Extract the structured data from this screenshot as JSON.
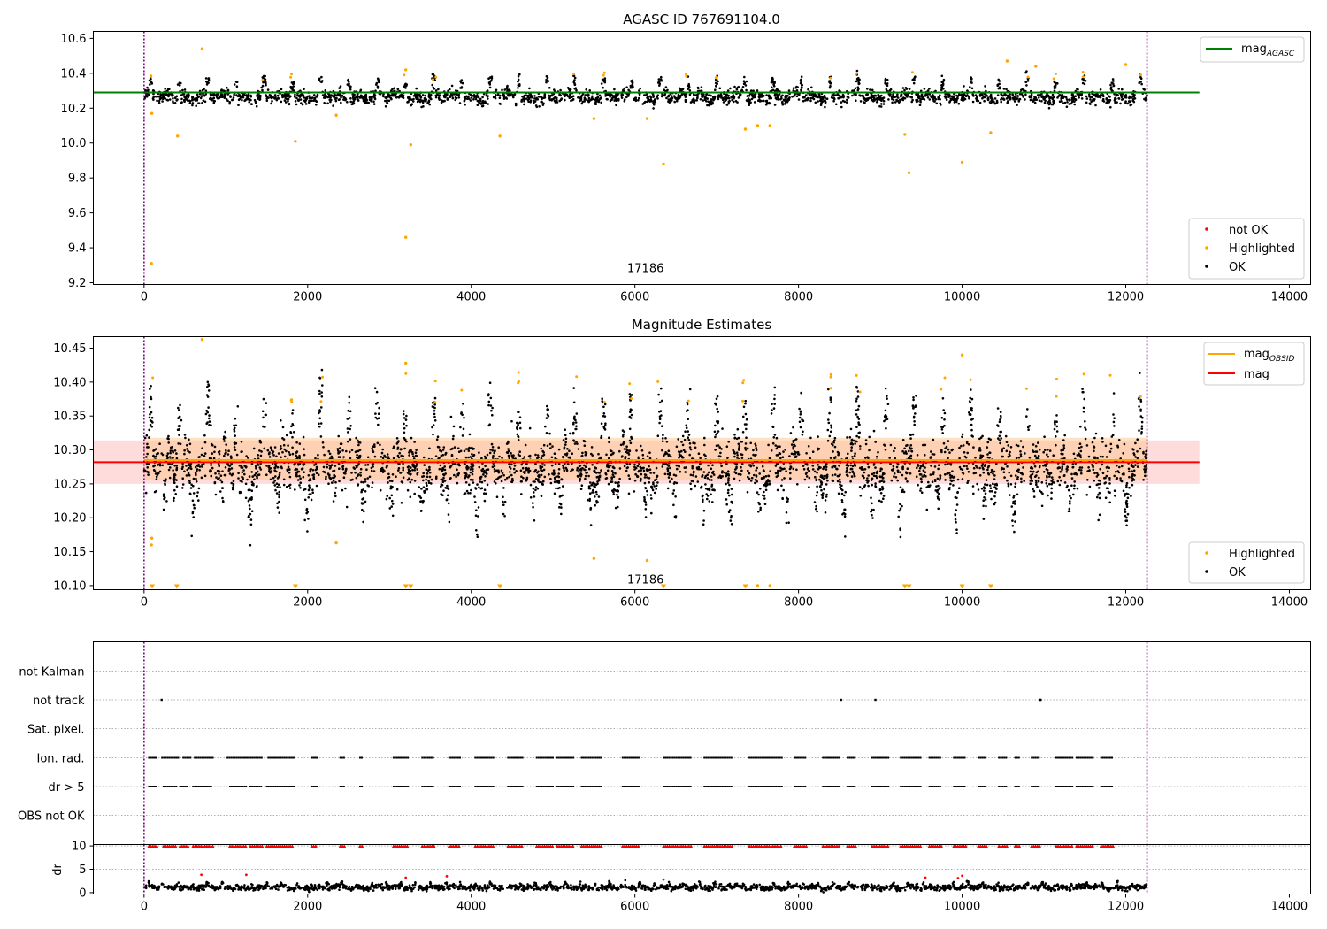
{
  "colors": {
    "ok": "#000000",
    "highlighted": "#ffa500",
    "not_ok": "#ff0000",
    "mag_agasc": "#008000",
    "mag_obsid": "#ffa500",
    "mag": "#ff0000",
    "obs_boundary": "#800080",
    "band_red": "#ffb2b2",
    "band_orange": "#ffc894"
  },
  "chart_data": [
    {
      "type": "scatter",
      "title": "AGASC ID 767691104.0",
      "xlabel": "",
      "ylabel": "",
      "xlim": [
        -620,
        14260
      ],
      "ylim": [
        9.19,
        10.64
      ],
      "xticks": [
        0,
        2000,
        4000,
        6000,
        8000,
        10000,
        12000,
        14000
      ],
      "yticks": [
        9.2,
        9.4,
        9.6,
        9.8,
        10.0,
        10.2,
        10.4,
        10.6
      ],
      "ytick_labels": [
        "9.2",
        "9.4",
        "9.6",
        "9.8",
        "10.0",
        "10.2",
        "10.4",
        "10.6"
      ],
      "obs_boundaries": [
        0,
        12260
      ],
      "obsid_label": {
        "text": "17186",
        "x": 6130,
        "y": 9.25
      },
      "ok_band": {
        "x0": 0,
        "x1": 12260,
        "center": 10.265,
        "spread": 0.035
      },
      "lines": [
        {
          "name": "mag_AGASC",
          "label_main": "mag",
          "label_sub": "AGASC",
          "y": 10.29,
          "x0": -620,
          "x1": 12900
        }
      ],
      "legend_upper": "upper right",
      "legend_lower": "lower right",
      "series": [
        {
          "name": "not OK",
          "values": []
        },
        {
          "name": "Highlighted",
          "points": [
            [
              90,
              9.31
            ],
            [
              95,
              10.17
            ],
            [
              410,
              10.04
            ],
            [
              710,
              10.54
            ],
            [
              1850,
              10.01
            ],
            [
              2350,
              10.16
            ],
            [
              3200,
              9.46
            ],
            [
              3200,
              10.42
            ],
            [
              3260,
              9.99
            ],
            [
              4350,
              10.04
            ],
            [
              5500,
              10.14
            ],
            [
              6150,
              10.14
            ],
            [
              6350,
              9.88
            ],
            [
              7350,
              10.08
            ],
            [
              7500,
              10.1
            ],
            [
              7650,
              10.1
            ],
            [
              9300,
              10.05
            ],
            [
              9350,
              9.83
            ],
            [
              10000,
              9.89
            ],
            [
              10350,
              10.06
            ],
            [
              10550,
              10.47
            ],
            [
              10900,
              10.44
            ],
            [
              12000,
              10.45
            ]
          ]
        },
        {
          "name": "OK",
          "values": []
        }
      ]
    },
    {
      "type": "scatter",
      "title": "Magnitude Estimates",
      "xlabel": "",
      "ylabel": "",
      "xlim": [
        -620,
        14260
      ],
      "ylim": [
        10.094,
        10.467
      ],
      "xticks": [
        0,
        2000,
        4000,
        6000,
        8000,
        10000,
        12000,
        14000
      ],
      "yticks": [
        10.1,
        10.15,
        10.2,
        10.25,
        10.3,
        10.35,
        10.4,
        10.45
      ],
      "ytick_labels": [
        "10.10",
        "10.15",
        "10.20",
        "10.25",
        "10.30",
        "10.35",
        "10.40",
        "10.45"
      ],
      "obs_boundaries": [
        0,
        12260
      ],
      "obsid_label": {
        "text": "17186",
        "x": 6130,
        "y": 10.102
      },
      "ok_band": {
        "x0": 0,
        "x1": 12260,
        "center": 10.275,
        "spread": 0.035
      },
      "lines": [
        {
          "name": "mag_OBSID",
          "label_main": "mag",
          "label_sub": "OBSID",
          "y": 10.285,
          "x0": 0,
          "x1": 12260
        },
        {
          "name": "mag",
          "label_main": "mag",
          "label_sub": "",
          "y": 10.282,
          "x0": -620,
          "x1": 12900
        }
      ],
      "bands": [
        {
          "name": "mag-band",
          "y0": 10.25,
          "y1": 10.314,
          "x0": -620,
          "x1": 12900
        },
        {
          "name": "mag_OBSID-band",
          "y0": 10.255,
          "y1": 10.318,
          "x0": 0,
          "x1": 12260
        }
      ],
      "legend_upper": "upper right",
      "legend_lower": "lower right",
      "series": [
        {
          "name": "Highlighted",
          "points": [
            [
              90,
              10.16
            ],
            [
              95,
              10.17
            ],
            [
              710,
              10.463
            ],
            [
              2350,
              10.163
            ],
            [
              3200,
              10.428
            ],
            [
              5500,
              10.14
            ],
            [
              6150,
              10.137
            ],
            [
              7500,
              10.1
            ],
            [
              7650,
              10.1
            ],
            [
              10000,
              10.44
            ]
          ],
          "clipped_x": [
            100,
            400,
            1850,
            3200,
            3260,
            4350,
            6350,
            7350,
            9300,
            9350,
            10000,
            10350
          ]
        },
        {
          "name": "OK",
          "values": []
        }
      ]
    },
    {
      "type": "scatter",
      "title": "",
      "xlabel": "",
      "ylabel": "",
      "xlim": [
        -620,
        14260
      ],
      "flag_rows": [
        "not Kalman",
        "not track",
        "Sat. pixel.",
        "Ion. rad.",
        "dr > 5",
        "OBS not OK"
      ],
      "obs_boundaries": [
        0,
        12260
      ],
      "flags": {
        "not track": [
          215,
          8520,
          8940,
          10950,
          10960
        ],
        "Ion. rad.": [
          {
            "from": 60,
            "to": 160
          },
          {
            "from": 220,
            "to": 420
          },
          {
            "from": 480,
            "to": 580
          },
          {
            "from": 620,
            "to": 840
          },
          {
            "from": 1020,
            "to": 1450
          },
          {
            "from": 1520,
            "to": 1830
          },
          {
            "from": 2050,
            "to": 2120
          },
          {
            "from": 2400,
            "to": 2450
          },
          {
            "from": 2640,
            "to": 2680
          },
          {
            "from": 3050,
            "to": 3240
          },
          {
            "from": 3400,
            "to": 3550
          },
          {
            "from": 3730,
            "to": 3870
          },
          {
            "from": 4050,
            "to": 4280
          },
          {
            "from": 4450,
            "to": 4630
          },
          {
            "from": 4800,
            "to": 5000
          },
          {
            "from": 5050,
            "to": 5250
          },
          {
            "from": 5350,
            "to": 5600
          },
          {
            "from": 5850,
            "to": 6050
          },
          {
            "from": 6350,
            "to": 6700
          },
          {
            "from": 6850,
            "to": 7200
          },
          {
            "from": 7400,
            "to": 7800
          },
          {
            "from": 7950,
            "to": 8100
          },
          {
            "from": 8300,
            "to": 8500
          },
          {
            "from": 8600,
            "to": 8700
          },
          {
            "from": 8900,
            "to": 9100
          },
          {
            "from": 9250,
            "to": 9500
          },
          {
            "from": 9600,
            "to": 9750
          },
          {
            "from": 9900,
            "to": 10050
          },
          {
            "from": 10200,
            "to": 10300
          },
          {
            "from": 10450,
            "to": 10550
          },
          {
            "from": 10650,
            "to": 10700
          },
          {
            "from": 10850,
            "to": 10950
          },
          {
            "from": 11150,
            "to": 11350
          },
          {
            "from": 11400,
            "to": 11600
          },
          {
            "from": 11700,
            "to": 11850
          }
        ],
        "dr > 5": [
          {
            "from": 60,
            "to": 160
          },
          {
            "from": 240,
            "to": 400
          },
          {
            "from": 440,
            "to": 540
          },
          {
            "from": 600,
            "to": 840
          },
          {
            "from": 1050,
            "to": 1250
          },
          {
            "from": 1300,
            "to": 1450
          },
          {
            "from": 1500,
            "to": 1830
          },
          {
            "from": 2050,
            "to": 2120
          },
          {
            "from": 2400,
            "to": 2450
          },
          {
            "from": 2640,
            "to": 2680
          },
          {
            "from": 3050,
            "to": 3240
          },
          {
            "from": 3400,
            "to": 3550
          },
          {
            "from": 3730,
            "to": 3870
          },
          {
            "from": 4050,
            "to": 4280
          },
          {
            "from": 4450,
            "to": 4630
          },
          {
            "from": 4800,
            "to": 5000
          },
          {
            "from": 5050,
            "to": 5250
          },
          {
            "from": 5350,
            "to": 5600
          },
          {
            "from": 5850,
            "to": 6050
          },
          {
            "from": 6350,
            "to": 6700
          },
          {
            "from": 6850,
            "to": 7200
          },
          {
            "from": 7400,
            "to": 7800
          },
          {
            "from": 7950,
            "to": 8100
          },
          {
            "from": 8300,
            "to": 8500
          },
          {
            "from": 8600,
            "to": 8700
          },
          {
            "from": 8900,
            "to": 9100
          },
          {
            "from": 9250,
            "to": 9500
          },
          {
            "from": 9600,
            "to": 9750
          },
          {
            "from": 9900,
            "to": 10050
          },
          {
            "from": 10200,
            "to": 10300
          },
          {
            "from": 10450,
            "to": 10550
          },
          {
            "from": 10650,
            "to": 10700
          },
          {
            "from": 10850,
            "to": 10950
          },
          {
            "from": 11150,
            "to": 11350
          },
          {
            "from": 11400,
            "to": 11600
          },
          {
            "from": 11700,
            "to": 11850
          }
        ]
      }
    },
    {
      "type": "scatter",
      "title": "",
      "xlabel": "",
      "ylabel": "dr",
      "xlim": [
        -620,
        14260
      ],
      "ylim": [
        -0.3,
        10.3
      ],
      "xticks": [
        0,
        2000,
        4000,
        6000,
        8000,
        10000,
        12000,
        14000
      ],
      "yticks": [
        0,
        5,
        10
      ],
      "obs_boundaries": [
        0,
        12260
      ],
      "clipped_level": 10,
      "ok_band": {
        "x0": 0,
        "x1": 12260,
        "center": 1.1,
        "spread": 0.5
      },
      "series": [
        {
          "name": "dr > 5 (clipped)",
          "segments_ref": "dr > 5"
        },
        {
          "name": "not OK",
          "points": [
            [
              700,
              3.8
            ],
            [
              1250,
              3.8
            ],
            [
              3200,
              3.2
            ],
            [
              3700,
              3.5
            ],
            [
              6350,
              2.8
            ],
            [
              9550,
              3.2
            ],
            [
              9950,
              3.1
            ],
            [
              10000,
              3.6
            ]
          ]
        },
        {
          "name": "OK",
          "values": []
        }
      ]
    }
  ],
  "legends": {
    "top_upper": [
      {
        "label_main": "mag",
        "label_sub": "AGASC"
      }
    ],
    "top_lower": [
      {
        "label": "not OK"
      },
      {
        "label": "Highlighted"
      },
      {
        "label": "OK"
      }
    ],
    "mid_upper": [
      {
        "label_main": "mag",
        "label_sub": "OBSID"
      },
      {
        "label_main": "mag",
        "label_sub": ""
      }
    ],
    "mid_lower": [
      {
        "label": "Highlighted"
      },
      {
        "label": "OK"
      }
    ]
  }
}
